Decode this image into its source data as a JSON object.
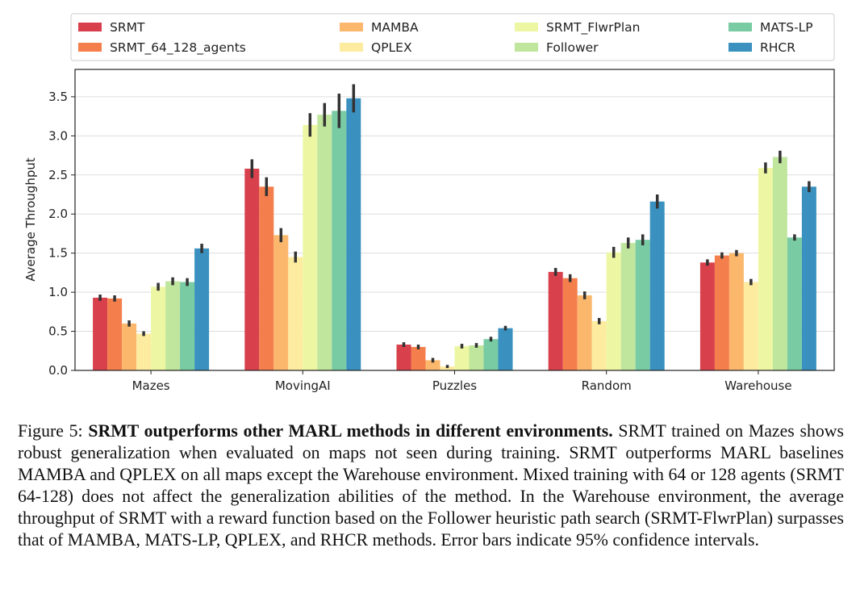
{
  "chart_data": {
    "type": "bar",
    "ylabel": "Average Throughput",
    "ylim": [
      0,
      3.85
    ],
    "yticks": [
      "0.0",
      "0.5",
      "1.0",
      "1.5",
      "2.0",
      "2.5",
      "3.0",
      "3.5"
    ],
    "grid": "horizontal",
    "legend_position": "top",
    "categories": [
      "Mazes",
      "MovingAI",
      "Puzzles",
      "Random",
      "Warehouse"
    ],
    "series": [
      {
        "name": "SRMT",
        "color": "#d8404c",
        "values": [
          0.93,
          2.58,
          0.33,
          1.26,
          1.38
        ],
        "errors": [
          0.04,
          0.12,
          0.03,
          0.05,
          0.04
        ]
      },
      {
        "name": "SRMT_64_128_agents",
        "color": "#f57f4c",
        "values": [
          0.92,
          2.35,
          0.3,
          1.18,
          1.47
        ],
        "errors": [
          0.04,
          0.12,
          0.03,
          0.05,
          0.04
        ]
      },
      {
        "name": "MAMBA",
        "color": "#fbb86d",
        "values": [
          0.6,
          1.73,
          0.13,
          0.96,
          1.5
        ],
        "errors": [
          0.04,
          0.09,
          0.03,
          0.05,
          0.04
        ]
      },
      {
        "name": "QPLEX",
        "color": "#fdeba0",
        "values": [
          0.47,
          1.45,
          0.05,
          0.63,
          1.13
        ],
        "errors": [
          0.03,
          0.07,
          0.02,
          0.04,
          0.04
        ]
      },
      {
        "name": "SRMT_FlwrPlan",
        "color": "#edf7a3",
        "values": [
          1.07,
          3.14,
          0.31,
          1.51,
          2.59
        ],
        "errors": [
          0.05,
          0.15,
          0.03,
          0.07,
          0.07
        ]
      },
      {
        "name": "Follower",
        "color": "#c0e59d",
        "values": [
          1.14,
          3.27,
          0.32,
          1.63,
          2.73
        ],
        "errors": [
          0.05,
          0.15,
          0.03,
          0.07,
          0.08
        ]
      },
      {
        "name": "MATS-LP",
        "color": "#78cba3",
        "values": [
          1.13,
          3.32,
          0.4,
          1.67,
          1.7
        ],
        "errors": [
          0.05,
          0.22,
          0.03,
          0.07,
          0.04
        ]
      },
      {
        "name": "RHCR",
        "color": "#3a91bf",
        "values": [
          1.56,
          3.48,
          0.54,
          2.16,
          2.35
        ],
        "errors": [
          0.06,
          0.18,
          0.03,
          0.09,
          0.07
        ]
      }
    ]
  },
  "caption": {
    "label": "Figure 5:",
    "title": "SRMT outperforms other MARL methods in different environments.",
    "body": "SRMT trained on Mazes shows robust generalization when evaluated on maps not seen during training. SRMT outperforms MARL baselines MAMBA and QPLEX on all maps except the Warehouse environment. Mixed training with 64 or 128 agents (SRMT 64-128) does not affect the generalization abilities of the method.  In the Warehouse environment, the average throughput of SRMT with a reward function based on the Follower heuristic path search (SRMT-FlwrPlan) surpasses that of MAMBA, MATS-LP, QPLEX, and RHCR methods. Error bars indicate 95% confidence intervals."
  }
}
